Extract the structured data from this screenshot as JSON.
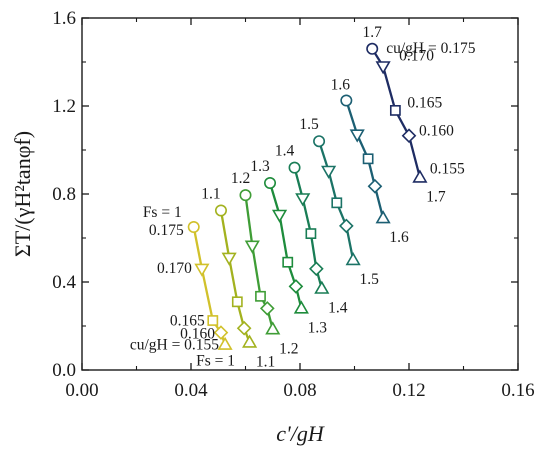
{
  "chart_data": {
    "type": "line",
    "xlabel": "c'/gH",
    "ylabel": "ΣT/(γH²tanφf)",
    "xlim": [
      0.0,
      0.16
    ],
    "ylim": [
      0.0,
      1.6
    ],
    "xticks": [
      "0.00",
      "0.04",
      "0.08",
      "0.12",
      "0.16"
    ],
    "yticks": [
      "0.0",
      "0.4",
      "0.8",
      "1.2",
      "1.6"
    ],
    "grid": false,
    "legend": "none",
    "cu_values": [
      0.175,
      0.17,
      0.165,
      0.16,
      0.155
    ],
    "cu_labels": [
      "0.175",
      "0.170",
      "0.165",
      "0.160",
      "0.155"
    ],
    "markers": [
      "circle",
      "triangle-down",
      "square",
      "diamond",
      "triangle-up"
    ],
    "series": [
      {
        "fs_label": "1",
        "color": "#d1c12b",
        "x": [
          0.041,
          0.044,
          0.048,
          0.051,
          0.0525
        ],
        "y": [
          0.65,
          0.46,
          0.225,
          0.17,
          0.115
        ]
      },
      {
        "fs_label": "1.1",
        "color": "#a3b21f",
        "x": [
          0.051,
          0.054,
          0.057,
          0.0595,
          0.0615
        ],
        "y": [
          0.725,
          0.51,
          0.31,
          0.19,
          0.125
        ]
      },
      {
        "fs_label": "1.2",
        "color": "#3f9d36",
        "x": [
          0.06,
          0.0625,
          0.0655,
          0.068,
          0.07
        ],
        "y": [
          0.795,
          0.565,
          0.335,
          0.28,
          0.185
        ]
      },
      {
        "fs_label": "1.3",
        "color": "#1e8c3c",
        "x": [
          0.069,
          0.0725,
          0.0755,
          0.0785,
          0.0805
        ],
        "y": [
          0.85,
          0.705,
          0.49,
          0.38,
          0.28
        ]
      },
      {
        "fs_label": "1.4",
        "color": "#197d55",
        "x": [
          0.078,
          0.081,
          0.084,
          0.086,
          0.088
        ],
        "y": [
          0.92,
          0.78,
          0.62,
          0.46,
          0.37
        ]
      },
      {
        "fs_label": "1.5",
        "color": "#1b7366",
        "x": [
          0.087,
          0.0905,
          0.0935,
          0.097,
          0.0995
        ],
        "y": [
          1.04,
          0.905,
          0.76,
          0.655,
          0.5
        ]
      },
      {
        "fs_label": "1.6",
        "color": "#1c5f73",
        "x": [
          0.097,
          0.101,
          0.105,
          0.1075,
          0.1105
        ],
        "y": [
          1.225,
          1.07,
          0.96,
          0.835,
          0.69
        ]
      },
      {
        "fs_label": "1.7",
        "color": "#1e2c63",
        "x": [
          0.1065,
          0.1105,
          0.115,
          0.12,
          0.124
        ],
        "y": [
          1.46,
          1.38,
          1.18,
          1.065,
          0.875
        ]
      }
    ],
    "annotations": {
      "cu_top": "cu/gH = 0.175",
      "fs_top": "Fs = 1",
      "cu_bottom": "cu/gH = 0.155",
      "fs_bottom": "Fs = 1"
    }
  }
}
